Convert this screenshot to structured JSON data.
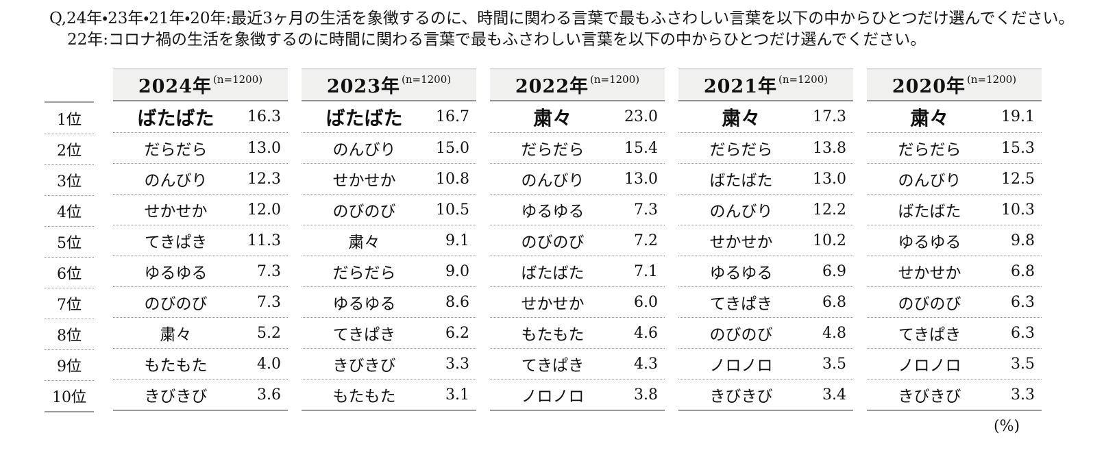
{
  "question": {
    "line1": "Q,24年・23年・21年・20年:最近3ヶ月の生活を象徴するのに、時間に関わる言葉で最もふさわしい言葉を以下の中からひとつだけ選んでください。",
    "line2": "22年:コロナ禍の生活を象徴するのに時間に関わる言葉で最もふさわしい言葉を以下の中からひとつだけ選んでください。"
  },
  "unit_label": "(%)",
  "chart_data": {
    "type": "table",
    "title": "時間に関わる言葉の年別ランキング",
    "unit": "%",
    "rank_labels": [
      "1位",
      "2位",
      "3位",
      "4位",
      "5位",
      "6位",
      "7位",
      "8位",
      "9位",
      "10位"
    ],
    "columns": [
      {
        "year": "2024年",
        "n": "(n=1200)",
        "rows": [
          {
            "word": "ばたばた",
            "value": "16.3"
          },
          {
            "word": "だらだら",
            "value": "13.0"
          },
          {
            "word": "のんびり",
            "value": "12.3"
          },
          {
            "word": "せかせか",
            "value": "12.0"
          },
          {
            "word": "てきぱき",
            "value": "11.3"
          },
          {
            "word": "ゆるゆる",
            "value": "7.3"
          },
          {
            "word": "のびのび",
            "value": "7.3"
          },
          {
            "word": "粛々",
            "value": "5.2"
          },
          {
            "word": "もたもた",
            "value": "4.0"
          },
          {
            "word": "きびきび",
            "value": "3.6"
          }
        ]
      },
      {
        "year": "2023年",
        "n": "(n=1200)",
        "rows": [
          {
            "word": "ばたばた",
            "value": "16.7"
          },
          {
            "word": "のんびり",
            "value": "15.0"
          },
          {
            "word": "せかせか",
            "value": "10.8"
          },
          {
            "word": "のびのび",
            "value": "10.5"
          },
          {
            "word": "粛々",
            "value": "9.1"
          },
          {
            "word": "だらだら",
            "value": "9.0"
          },
          {
            "word": "ゆるゆる",
            "value": "8.6"
          },
          {
            "word": "てきぱき",
            "value": "6.2"
          },
          {
            "word": "きびきび",
            "value": "3.3"
          },
          {
            "word": "もたもた",
            "value": "3.1"
          }
        ]
      },
      {
        "year": "2022年",
        "n": "(n=1200)",
        "rows": [
          {
            "word": "粛々",
            "value": "23.0"
          },
          {
            "word": "だらだら",
            "value": "15.4"
          },
          {
            "word": "のんびり",
            "value": "13.0"
          },
          {
            "word": "ゆるゆる",
            "value": "7.3"
          },
          {
            "word": "のびのび",
            "value": "7.2"
          },
          {
            "word": "ばたばた",
            "value": "7.1"
          },
          {
            "word": "せかせか",
            "value": "6.0"
          },
          {
            "word": "もたもた",
            "value": "4.6"
          },
          {
            "word": "てきぱき",
            "value": "4.3"
          },
          {
            "word": "ノロノロ",
            "value": "3.8"
          }
        ]
      },
      {
        "year": "2021年",
        "n": "(n=1200)",
        "rows": [
          {
            "word": "粛々",
            "value": "17.3"
          },
          {
            "word": "だらだら",
            "value": "13.8"
          },
          {
            "word": "ばたばた",
            "value": "13.0"
          },
          {
            "word": "のんびり",
            "value": "12.2"
          },
          {
            "word": "せかせか",
            "value": "10.2"
          },
          {
            "word": "ゆるゆる",
            "value": "6.9"
          },
          {
            "word": "てきぱき",
            "value": "6.8"
          },
          {
            "word": "のびのび",
            "value": "4.8"
          },
          {
            "word": "ノロノロ",
            "value": "3.5"
          },
          {
            "word": "きびきび",
            "value": "3.4"
          }
        ]
      },
      {
        "year": "2020年",
        "n": "(n=1200)",
        "rows": [
          {
            "word": "粛々",
            "value": "19.1"
          },
          {
            "word": "だらだら",
            "value": "15.3"
          },
          {
            "word": "のんびり",
            "value": "12.5"
          },
          {
            "word": "ばたばた",
            "value": "10.3"
          },
          {
            "word": "ゆるゆる",
            "value": "9.8"
          },
          {
            "word": "せかせか",
            "value": "6.8"
          },
          {
            "word": "のびのび",
            "value": "6.3"
          },
          {
            "word": "てきぱき",
            "value": "6.3"
          },
          {
            "word": "ノロノロ",
            "value": "3.5"
          },
          {
            "word": "きびきび",
            "value": "3.3"
          }
        ]
      }
    ]
  }
}
